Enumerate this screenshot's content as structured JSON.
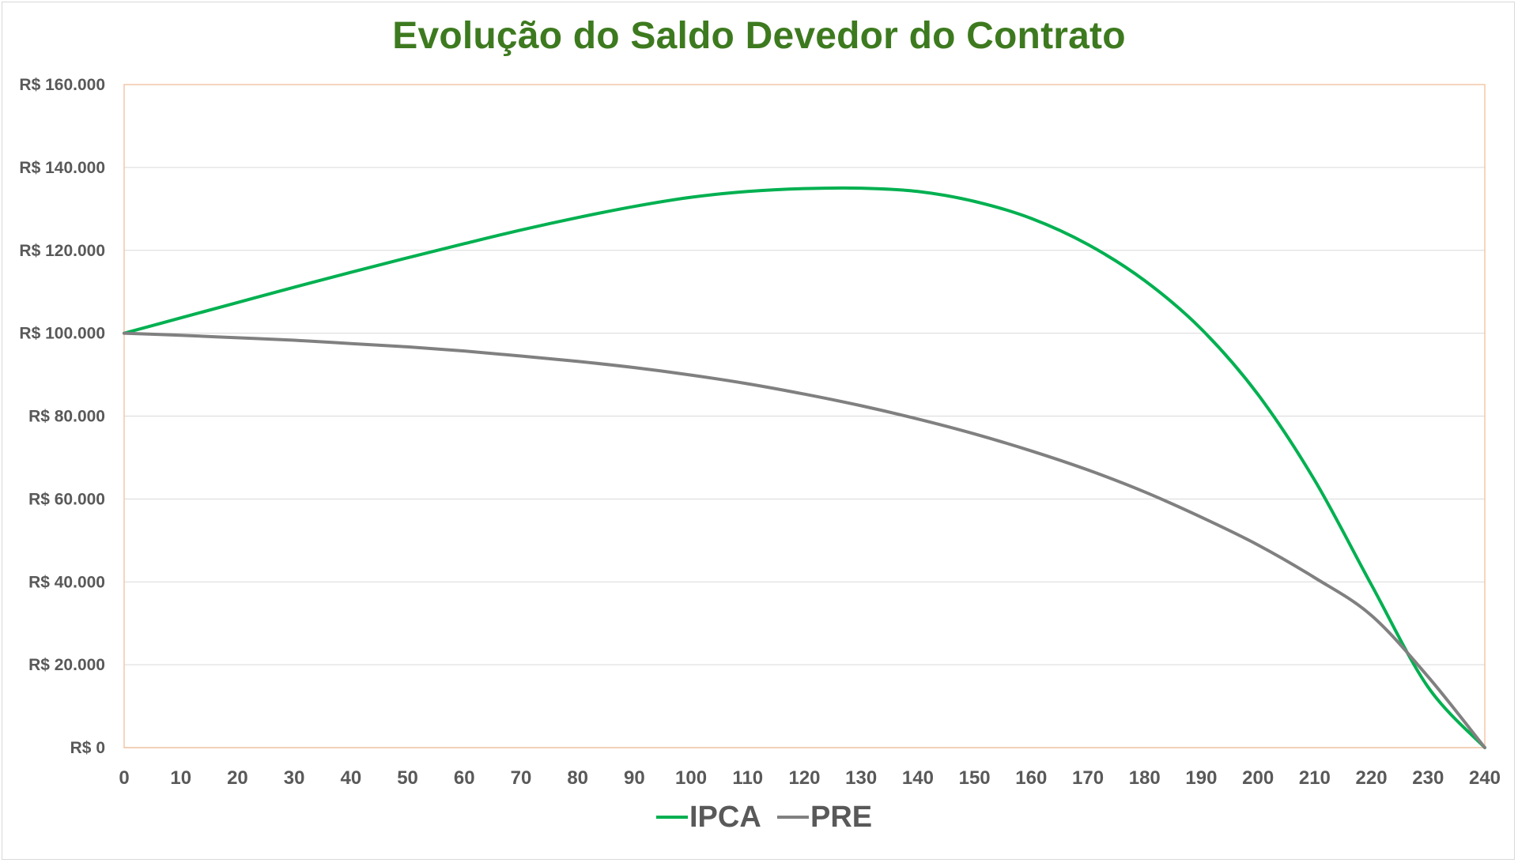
{
  "chart_data": {
    "type": "line",
    "title": "Evolução do Saldo Devedor do Contrato",
    "xlabel": "",
    "ylabel": "",
    "xlim": [
      0,
      240
    ],
    "ylim": [
      0,
      160000
    ],
    "x_ticks": [
      "0",
      "10",
      "20",
      "30",
      "40",
      "50",
      "60",
      "70",
      "80",
      "90",
      "100",
      "110",
      "120",
      "130",
      "140",
      "150",
      "160",
      "170",
      "180",
      "190",
      "200",
      "210",
      "220",
      "230",
      "240"
    ],
    "y_ticks": [
      {
        "value": 0,
        "label": "R$ 0"
      },
      {
        "value": 20000,
        "label": "R$ 20.000"
      },
      {
        "value": 40000,
        "label": "R$ 40.000"
      },
      {
        "value": 60000,
        "label": "R$ 60.000"
      },
      {
        "value": 80000,
        "label": "R$ 80.000"
      },
      {
        "value": 100000,
        "label": "R$ 100.000"
      },
      {
        "value": 120000,
        "label": "R$ 120.000"
      },
      {
        "value": 140000,
        "label": "R$ 140.000"
      },
      {
        "value": 160000,
        "label": "R$ 160.000"
      }
    ],
    "grid": true,
    "legend_position": "bottom",
    "x": [
      0,
      10,
      20,
      30,
      40,
      50,
      60,
      70,
      80,
      90,
      100,
      110,
      120,
      130,
      140,
      150,
      160,
      170,
      180,
      190,
      200,
      210,
      220,
      230,
      240
    ],
    "series": [
      {
        "name": "IPCA",
        "color": "#00b050",
        "values": [
          100000,
          103700,
          107400,
          111100,
          114700,
          118200,
          121600,
          124900,
          127900,
          130600,
          132800,
          134200,
          134900,
          135000,
          134200,
          131800,
          127700,
          121400,
          112700,
          101000,
          85200,
          64500,
          39300,
          14600,
          0
        ]
      },
      {
        "name": "PRE",
        "color": "#808080",
        "values": [
          100000,
          99500,
          98900,
          98300,
          97500,
          96700,
          95700,
          94500,
          93200,
          91700,
          89900,
          87800,
          85300,
          82500,
          79300,
          75700,
          71600,
          67000,
          61700,
          55600,
          48900,
          41000,
          31900,
          17100,
          0
        ]
      }
    ]
  }
}
